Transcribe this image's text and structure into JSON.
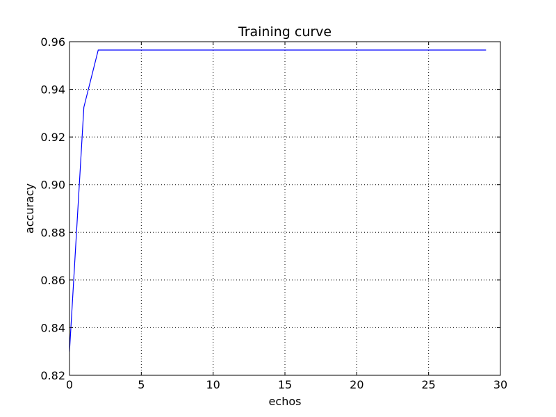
{
  "chart_data": {
    "type": "line",
    "title": "Training curve",
    "xlabel": "echos",
    "ylabel": "accuracy",
    "xlim": [
      0,
      30
    ],
    "ylim": [
      0.82,
      0.96
    ],
    "xticks": [
      0,
      5,
      10,
      15,
      20,
      25,
      30
    ],
    "xtick_labels": [
      "0",
      "5",
      "10",
      "15",
      "20",
      "25",
      "30"
    ],
    "yticks": [
      0.82,
      0.84,
      0.86,
      0.88,
      0.9,
      0.92,
      0.94,
      0.96
    ],
    "ytick_labels": [
      "0.82",
      "0.84",
      "0.86",
      "0.88",
      "0.90",
      "0.92",
      "0.94",
      "0.96"
    ],
    "grid": true,
    "series": [
      {
        "color": "#0000ff",
        "x": [
          0,
          1,
          2,
          3,
          4,
          5,
          6,
          7,
          8,
          9,
          10,
          11,
          12,
          13,
          14,
          15,
          16,
          17,
          18,
          19,
          20,
          21,
          22,
          23,
          24,
          25,
          26,
          27,
          28,
          29
        ],
        "y": [
          0.83,
          0.9325,
          0.9565,
          0.9565,
          0.9565,
          0.9565,
          0.9565,
          0.9565,
          0.9565,
          0.9565,
          0.9565,
          0.9565,
          0.9565,
          0.9565,
          0.9565,
          0.9565,
          0.9565,
          0.9565,
          0.9565,
          0.9565,
          0.9565,
          0.9565,
          0.9565,
          0.9565,
          0.9565,
          0.9565,
          0.9565,
          0.9565,
          0.9565,
          0.9565
        ]
      }
    ]
  }
}
